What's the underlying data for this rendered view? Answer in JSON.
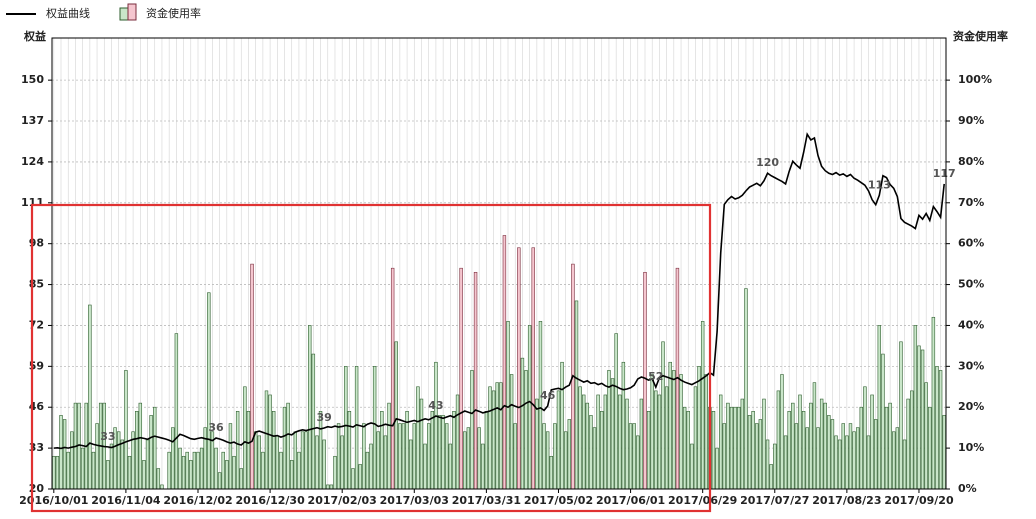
{
  "chart_data": {
    "type": "combo",
    "y_label": "权益",
    "y2_label": "资金使用率",
    "ylim": [
      20,
      163.4
    ],
    "yticks": [
      20,
      33,
      46,
      59,
      72,
      85,
      98,
      111,
      124,
      137,
      150
    ],
    "y2lim": [
      0,
      110.3
    ],
    "y2ticks": [
      {
        "value": 0,
        "label": "0%"
      },
      {
        "value": 10,
        "label": "10%"
      },
      {
        "value": 20,
        "label": "20%"
      },
      {
        "value": 30,
        "label": "30%"
      },
      {
        "value": 40,
        "label": "40%"
      },
      {
        "value": 50,
        "label": "50%"
      },
      {
        "value": 60,
        "label": "60%"
      },
      {
        "value": 70,
        "label": "70%"
      },
      {
        "value": 80,
        "label": "80%"
      },
      {
        "value": 90,
        "label": "90%"
      },
      {
        "value": 100,
        "label": "100%"
      }
    ],
    "grid": true,
    "legend": "top-left",
    "categories": [
      "2016/10/01",
      null,
      null,
      null,
      null,
      null,
      null,
      null,
      null,
      null,
      null,
      null,
      null,
      null,
      null,
      null,
      null,
      null,
      null,
      null,
      "2016/11/04",
      null,
      null,
      null,
      null,
      null,
      null,
      null,
      null,
      null,
      null,
      null,
      null,
      null,
      null,
      null,
      null,
      null,
      null,
      null,
      "2016/12/02",
      null,
      null,
      null,
      null,
      null,
      null,
      null,
      null,
      null,
      null,
      null,
      null,
      null,
      null,
      null,
      null,
      null,
      null,
      null,
      "2016/12/30",
      null,
      null,
      null,
      null,
      null,
      null,
      null,
      null,
      null,
      null,
      null,
      null,
      null,
      null,
      null,
      null,
      null,
      null,
      null,
      "2017/02/03",
      null,
      null,
      null,
      null,
      null,
      null,
      null,
      null,
      null,
      null,
      null,
      null,
      null,
      null,
      null,
      null,
      null,
      null,
      null,
      "2017/03/03",
      null,
      null,
      null,
      null,
      null,
      null,
      null,
      null,
      null,
      null,
      null,
      null,
      null,
      null,
      null,
      null,
      null,
      null,
      null,
      "2017/03/31",
      null,
      null,
      null,
      null,
      null,
      null,
      null,
      null,
      null,
      null,
      null,
      null,
      null,
      null,
      null,
      null,
      null,
      null,
      null,
      "2017/05/02",
      null,
      null,
      null,
      null,
      null,
      null,
      null,
      null,
      null,
      null,
      null,
      null,
      null,
      null,
      null,
      null,
      null,
      null,
      null,
      "2017/06/01",
      null,
      null,
      null,
      null,
      null,
      null,
      null,
      null,
      null,
      null,
      null,
      null,
      null,
      null,
      null,
      null,
      null,
      null,
      null,
      "2017/06/29",
      null,
      null,
      null,
      null,
      null,
      null,
      null,
      null,
      null,
      null,
      null,
      null,
      null,
      null,
      null,
      null,
      null,
      null,
      null,
      "2017/07/27",
      null,
      null,
      null,
      null,
      null,
      null,
      null,
      null,
      null,
      null,
      null,
      null,
      null,
      null,
      null,
      null,
      null,
      null,
      null,
      "2017/08/23",
      null,
      null,
      null,
      null,
      null,
      null,
      null,
      null,
      null,
      null,
      null,
      null,
      null,
      null,
      null,
      null,
      null,
      null,
      null,
      "2017/09/20",
      null,
      null,
      null,
      null,
      null,
      null,
      null
    ],
    "series": [
      {
        "name": "权益曲线",
        "type": "line",
        "axis": "y",
        "color": "#000000",
        "values": [
          33.0,
          33.1,
          32.9,
          33.2,
          33.0,
          33.3,
          33.5,
          34.0,
          33.8,
          33.5,
          34.6,
          34.2,
          33.9,
          33.7,
          33.5,
          33.4,
          33.2,
          33.6,
          34.1,
          34.5,
          35.0,
          35.4,
          35.8,
          36.0,
          36.3,
          36.1,
          35.8,
          36.4,
          36.8,
          36.5,
          36.2,
          35.9,
          35.5,
          35.0,
          36.2,
          37.4,
          37.0,
          36.5,
          36.0,
          35.8,
          36.1,
          36.3,
          36.0,
          35.8,
          35.4,
          36.2,
          35.9,
          35.5,
          35.0,
          34.6,
          34.9,
          34.3,
          34.0,
          35.0,
          34.6,
          35.2,
          38.1,
          38.4,
          38.0,
          37.6,
          37.2,
          36.8,
          37.0,
          36.5,
          36.9,
          37.5,
          37.2,
          38.1,
          38.5,
          38.8,
          38.6,
          38.9,
          39.2,
          39.5,
          39.1,
          39.4,
          39.8,
          39.6,
          40.0,
          39.7,
          39.9,
          40.2,
          40.0,
          39.7,
          40.4,
          40.1,
          39.8,
          40.6,
          41.0,
          40.7,
          39.9,
          40.2,
          40.6,
          40.3,
          40.1,
          42.3,
          42.0,
          41.6,
          41.2,
          41.5,
          41.8,
          41.4,
          41.9,
          42.3,
          42.0,
          42.6,
          43.2,
          42.8,
          42.5,
          42.9,
          43.3,
          42.8,
          43.6,
          44.2,
          44.8,
          44.4,
          44.0,
          45.1,
          44.7,
          44.2,
          44.5,
          44.8,
          45.3,
          45.8,
          45.2,
          46.5,
          46.0,
          46.8,
          46.3,
          45.9,
          46.5,
          47.3,
          47.8,
          46.8,
          45.4,
          45.8,
          45.0,
          46.4,
          51.5,
          51.8,
          52.0,
          51.6,
          52.4,
          53.0,
          56.0,
          55.2,
          54.6,
          54.0,
          54.4,
          53.6,
          53.8,
          53.2,
          53.6,
          52.8,
          52.4,
          53.0,
          52.6,
          52.0,
          51.6,
          51.8,
          52.2,
          53.0,
          55.0,
          55.6,
          55.2,
          54.6,
          55.0,
          52.4,
          55.4,
          56.0,
          55.6,
          55.2,
          54.8,
          55.4,
          54.6,
          54.0,
          53.6,
          53.2,
          53.8,
          54.4,
          55.2,
          56.0,
          57.0,
          56.2,
          70.0,
          95.0,
          110.5,
          112.0,
          113.0,
          112.2,
          112.6,
          113.4,
          114.8,
          116.0,
          116.6,
          117.2,
          116.4,
          118.0,
          120.4,
          119.6,
          119.0,
          118.4,
          117.8,
          117.0,
          121.0,
          124.2,
          123.0,
          122.0,
          127.0,
          132.8,
          131.0,
          131.6,
          126.0,
          122.6,
          121.2,
          120.4,
          120.0,
          120.6,
          119.8,
          120.2,
          119.4,
          120.0,
          118.8,
          118.2,
          117.4,
          116.6,
          114.8,
          112.0,
          110.4,
          113.4,
          119.6,
          119.0,
          116.8,
          115.6,
          113.0,
          106.0,
          104.8,
          104.2,
          103.6,
          102.8,
          107.0,
          105.8,
          107.6,
          105.4,
          109.8,
          108.2,
          106.4,
          117.0
        ],
        "value_labels": [
          null,
          null,
          null,
          null,
          null,
          null,
          null,
          null,
          null,
          null,
          null,
          null,
          null,
          null,
          null,
          "33",
          null,
          null,
          null,
          null,
          null,
          null,
          null,
          null,
          null,
          null,
          null,
          null,
          null,
          null,
          null,
          null,
          null,
          null,
          null,
          null,
          null,
          null,
          null,
          null,
          null,
          null,
          null,
          null,
          null,
          "36",
          null,
          null,
          null,
          null,
          null,
          null,
          null,
          null,
          null,
          null,
          null,
          null,
          null,
          null,
          null,
          null,
          null,
          null,
          null,
          null,
          null,
          null,
          null,
          null,
          null,
          null,
          null,
          null,
          null,
          "39",
          null,
          null,
          null,
          null,
          null,
          null,
          null,
          null,
          null,
          null,
          null,
          null,
          null,
          null,
          null,
          null,
          null,
          null,
          null,
          null,
          null,
          null,
          null,
          null,
          null,
          null,
          null,
          null,
          null,
          null,
          "43",
          null,
          null,
          null,
          null,
          null,
          null,
          null,
          null,
          null,
          null,
          null,
          null,
          null,
          null,
          null,
          null,
          null,
          null,
          null,
          null,
          null,
          null,
          null,
          null,
          null,
          null,
          null,
          null,
          null,
          null,
          "46",
          null,
          null,
          null,
          null,
          null,
          null,
          null,
          null,
          null,
          null,
          null,
          null,
          null,
          null,
          null,
          null,
          null,
          null,
          null,
          null,
          null,
          null,
          null,
          null,
          null,
          null,
          null,
          null,
          null,
          "52",
          null,
          null,
          null,
          null,
          null,
          null,
          null,
          null,
          null,
          null,
          null,
          null,
          null,
          null,
          null,
          null,
          null,
          null,
          null,
          null,
          null,
          null,
          null,
          null,
          null,
          null,
          null,
          null,
          null,
          null,
          "120",
          null,
          null,
          null,
          null,
          null,
          null,
          null,
          null,
          null,
          null,
          null,
          null,
          null,
          null,
          null,
          null,
          null,
          null,
          null,
          null,
          null,
          null,
          null,
          null,
          null,
          null,
          null,
          null,
          null,
          null,
          "113",
          null,
          null,
          null,
          null,
          null,
          null,
          null,
          null,
          null,
          null,
          null,
          null,
          null,
          null,
          null,
          null,
          null,
          "117"
        ]
      },
      {
        "name": "资金使用率",
        "type": "bar",
        "axis": "y2",
        "colors": [
          "#c9e6c9",
          "#f5c6cf"
        ],
        "edge_colors": [
          "#2e5e2e",
          "#7a2c3c"
        ],
        "values": [
          8,
          8,
          18,
          17,
          9,
          14,
          21,
          21,
          10,
          21,
          45,
          9,
          16,
          21,
          21,
          7,
          11,
          15,
          14,
          12,
          29,
          8,
          14,
          19,
          21,
          7,
          12,
          18,
          20,
          5,
          1,
          0,
          9,
          15,
          38,
          10,
          8,
          9,
          7,
          9,
          9,
          10,
          15,
          48,
          14,
          10,
          4,
          9,
          7,
          16,
          8,
          19,
          5,
          25,
          19,
          55,
          14,
          13,
          9,
          24,
          23,
          19,
          13,
          9,
          20,
          21,
          7,
          14,
          9,
          14,
          14,
          40,
          33,
          13,
          19,
          12,
          1,
          1,
          8,
          16,
          13,
          30,
          19,
          5,
          30,
          6,
          16,
          9,
          11,
          30,
          14,
          19,
          13,
          21,
          54,
          36,
          16,
          16,
          19,
          12,
          16,
          25,
          22,
          11,
          16,
          19,
          31,
          18,
          18,
          16,
          11,
          19,
          23,
          54,
          14,
          15,
          29,
          53,
          15,
          11,
          19,
          25,
          24,
          26,
          26,
          62,
          41,
          28,
          16,
          59,
          32,
          29,
          40,
          59,
          22,
          41,
          16,
          14,
          8,
          16,
          24,
          31,
          14,
          17,
          55,
          46,
          25,
          23,
          21,
          18,
          15,
          23,
          19,
          23,
          29,
          27,
          38,
          23,
          31,
          22,
          16,
          16,
          13,
          22,
          53,
          19,
          28,
          24,
          23,
          36,
          25,
          31,
          29,
          54,
          28,
          20,
          19,
          11,
          25,
          30,
          41,
          28,
          20,
          19,
          10,
          23,
          16,
          21,
          20,
          20,
          20,
          22,
          49,
          18,
          19,
          16,
          17,
          22,
          12,
          6,
          11,
          24,
          28,
          13,
          19,
          21,
          16,
          23,
          19,
          15,
          21,
          26,
          15,
          22,
          21,
          18,
          17,
          13,
          12,
          16,
          13,
          16,
          14,
          15,
          20,
          25,
          13,
          23,
          17,
          40,
          33,
          20,
          21,
          14,
          15,
          36,
          12,
          22,
          24,
          40,
          35,
          34,
          26,
          20,
          42,
          30,
          29,
          18
        ],
        "color_index": [
          0,
          0,
          0,
          0,
          0,
          0,
          0,
          0,
          0,
          0,
          0,
          0,
          0,
          0,
          0,
          0,
          0,
          0,
          0,
          0,
          0,
          0,
          0,
          0,
          0,
          0,
          0,
          0,
          0,
          0,
          0,
          0,
          0,
          0,
          0,
          0,
          0,
          0,
          0,
          0,
          0,
          0,
          0,
          0,
          0,
          0,
          0,
          0,
          0,
          0,
          0,
          0,
          0,
          0,
          0,
          1,
          0,
          0,
          0,
          0,
          0,
          0,
          0,
          0,
          0,
          0,
          0,
          0,
          0,
          0,
          0,
          0,
          0,
          0,
          0,
          0,
          0,
          0,
          0,
          0,
          0,
          0,
          0,
          0,
          0,
          0,
          0,
          0,
          0,
          0,
          0,
          0,
          0,
          0,
          1,
          0,
          0,
          0,
          0,
          0,
          0,
          0,
          0,
          0,
          0,
          0,
          0,
          0,
          0,
          0,
          0,
          0,
          0,
          1,
          0,
          0,
          0,
          1,
          0,
          0,
          0,
          0,
          0,
          0,
          0,
          1,
          0,
          0,
          0,
          1,
          0,
          0,
          0,
          1,
          0,
          0,
          0,
          0,
          0,
          0,
          0,
          0,
          0,
          0,
          1,
          0,
          0,
          0,
          0,
          0,
          0,
          0,
          0,
          0,
          0,
          0,
          0,
          0,
          0,
          0,
          0,
          0,
          0,
          0,
          1,
          0,
          0,
          0,
          0,
          0,
          0,
          0,
          0,
          1,
          0,
          0,
          0,
          0,
          0,
          0,
          0,
          0,
          0,
          0,
          0,
          0,
          0,
          0,
          0,
          0,
          0,
          0,
          0,
          0,
          0,
          0,
          0,
          0,
          0,
          0,
          0,
          0,
          0,
          0,
          0,
          0,
          0,
          0,
          0,
          0,
          0,
          0,
          0,
          0,
          0,
          0,
          0,
          0,
          0,
          0,
          0,
          0,
          0,
          0,
          0,
          0,
          0,
          0,
          0,
          0,
          0,
          0,
          0,
          0,
          0,
          0,
          0,
          0,
          0,
          0,
          0,
          0,
          0,
          0,
          0,
          0,
          0,
          0
        ]
      }
    ]
  }
}
